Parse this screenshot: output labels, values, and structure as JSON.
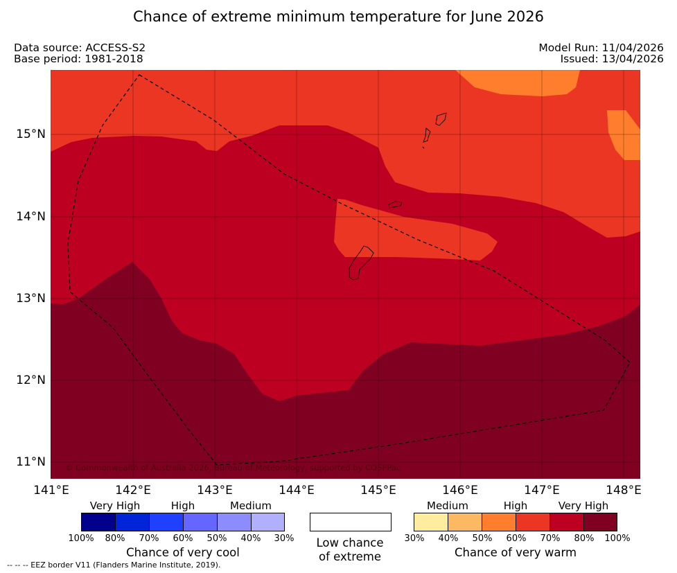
{
  "title": "Chance of extreme minimum temperature for June 2026",
  "meta": {
    "data_source": "Data source: ACCESS-S2",
    "base_period": "Base period: 1981-2018",
    "model_run": "Model Run: 11/04/2026",
    "issued": "Issued: 13/04/2026"
  },
  "map": {
    "lat_labels": [
      "15°N",
      "14°N",
      "13°N",
      "12°N",
      "11°N"
    ],
    "lon_labels": [
      "141°E",
      "142°E",
      "143°E",
      "144°E",
      "145°E",
      "146°E",
      "147°E",
      "148°E"
    ],
    "copyright": "© Commonwealth of Australia 2026, Bureau of Meteorology, supported by COSPPac",
    "colors": {
      "very_warm_100": "#7f0020",
      "very_warm_80": "#bd0022",
      "very_warm_70": "#ec3624",
      "very_warm_60": "#fe7e2d",
      "very_warm_50": "#fdb962",
      "very_warm_40": "#feed9e"
    }
  },
  "legend": {
    "cool": {
      "levels": [
        "Very High",
        "High",
        "Medium"
      ],
      "ticks": [
        "100%",
        "80%",
        "70%",
        "60%",
        "50%",
        "40%",
        "30%"
      ],
      "colors": [
        "#00008c",
        "#0024d8",
        "#2040ff",
        "#6466ff",
        "#8c8cff",
        "#b0b0ff"
      ],
      "label": "Chance of very cool"
    },
    "low": {
      "label_line1": "Low chance",
      "label_line2": "of extreme"
    },
    "warm": {
      "levels": [
        "Medium",
        "High",
        "Very High"
      ],
      "ticks": [
        "30%",
        "40%",
        "50%",
        "60%",
        "70%",
        "80%",
        "100%"
      ],
      "colors": [
        "#feed9e",
        "#fdb962",
        "#fe7e2d",
        "#ec3624",
        "#bd0022",
        "#7f0020"
      ],
      "label": "Chance of very warm"
    }
  },
  "footnote": "--  --  -- EEZ border V11 (Flanders Marine Institute, 2019)."
}
